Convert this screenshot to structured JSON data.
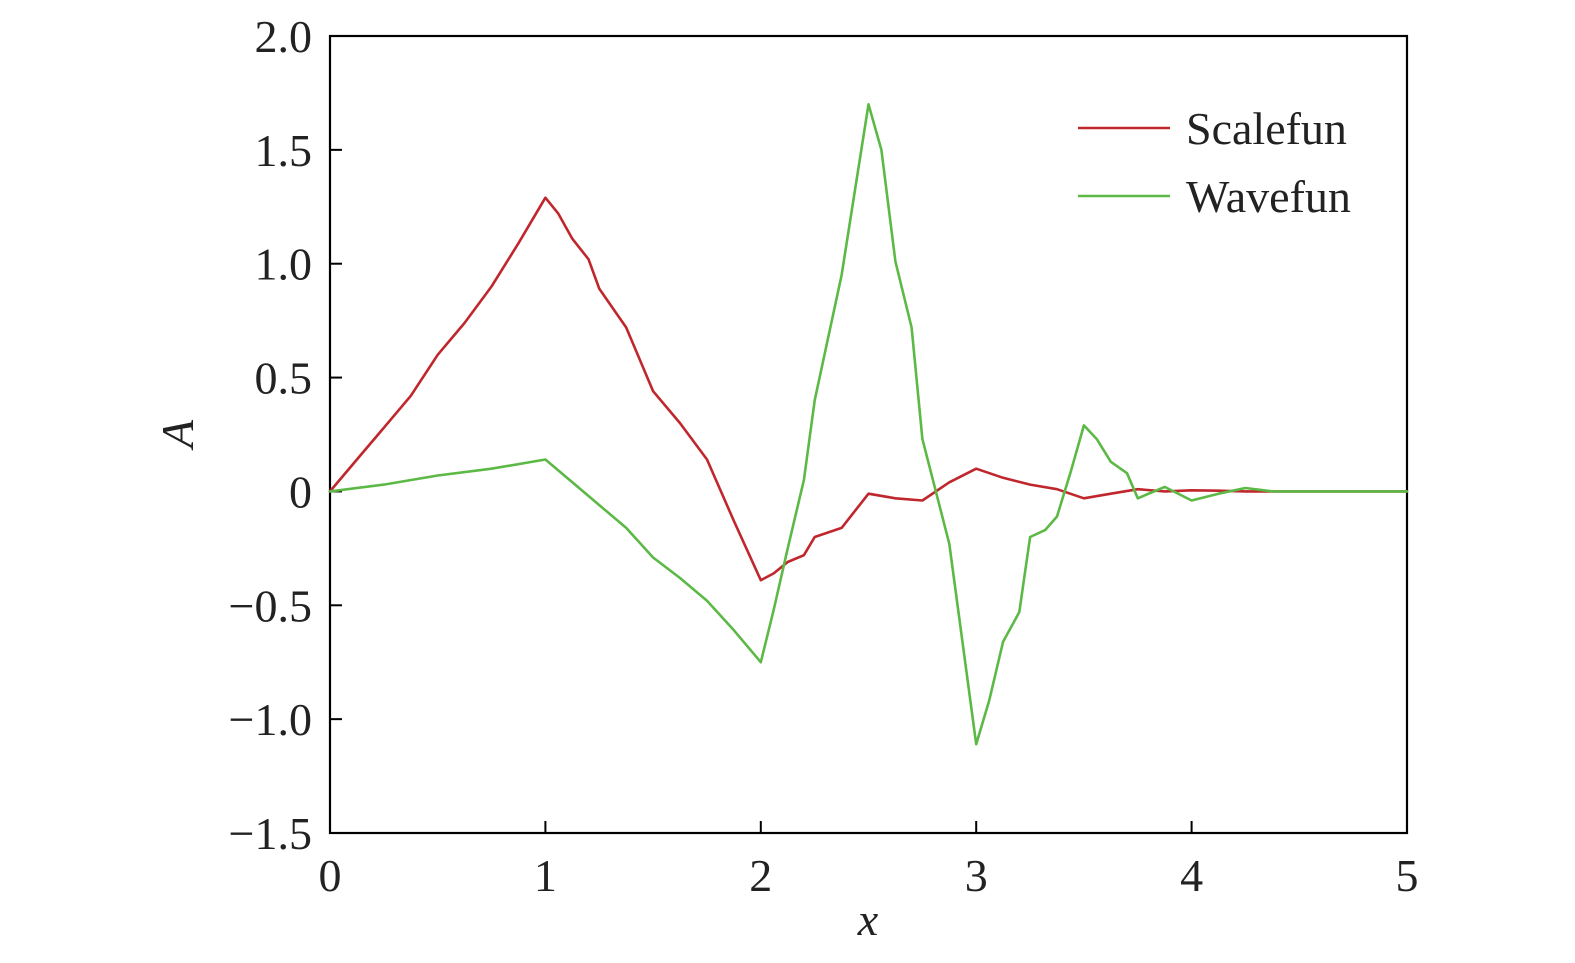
{
  "chart_data": {
    "type": "line",
    "xlabel": "x",
    "ylabel": "A",
    "xlim": [
      0,
      5
    ],
    "ylim": [
      -1.5,
      2.0
    ],
    "xticks": [
      0,
      1,
      2,
      3,
      4,
      5
    ],
    "xtick_labels": [
      "0",
      "1",
      "2",
      "3",
      "4",
      "5"
    ],
    "yticks": [
      -1.5,
      -1.0,
      -0.5,
      0,
      0.5,
      1.0,
      1.5,
      2.0
    ],
    "ytick_labels": [
      "−1.5",
      "−1.0",
      "−0.5",
      "0",
      "0.5",
      "1.0",
      "1.5",
      "2.0"
    ],
    "grid": false,
    "legend_position": "top-right",
    "series": [
      {
        "name": "Scalefun",
        "color": "#c0272d",
        "points": [
          [
            0,
            0
          ],
          [
            0.125,
            0.14
          ],
          [
            0.25,
            0.28
          ],
          [
            0.375,
            0.42
          ],
          [
            0.5,
            0.6
          ],
          [
            0.625,
            0.74
          ],
          [
            0.75,
            0.9
          ],
          [
            0.875,
            1.09
          ],
          [
            1.0,
            1.29
          ],
          [
            1.06,
            1.22
          ],
          [
            1.125,
            1.11
          ],
          [
            1.2,
            1.02
          ],
          [
            1.25,
            0.89
          ],
          [
            1.375,
            0.72
          ],
          [
            1.5,
            0.44
          ],
          [
            1.625,
            0.3
          ],
          [
            1.75,
            0.14
          ],
          [
            1.875,
            -0.13
          ],
          [
            2.0,
            -0.39
          ],
          [
            2.06,
            -0.36
          ],
          [
            2.125,
            -0.31
          ],
          [
            2.2,
            -0.28
          ],
          [
            2.25,
            -0.2
          ],
          [
            2.375,
            -0.16
          ],
          [
            2.5,
            -0.01
          ],
          [
            2.625,
            -0.03
          ],
          [
            2.75,
            -0.04
          ],
          [
            2.875,
            0.04
          ],
          [
            3.0,
            0.1
          ],
          [
            3.125,
            0.06
          ],
          [
            3.25,
            0.03
          ],
          [
            3.375,
            0.01
          ],
          [
            3.5,
            -0.03
          ],
          [
            3.625,
            -0.01
          ],
          [
            3.75,
            0.01
          ],
          [
            3.875,
            0.0
          ],
          [
            4.0,
            0.005
          ],
          [
            4.125,
            0.003
          ],
          [
            4.25,
            0.0
          ],
          [
            4.5,
            0.0
          ],
          [
            5.0,
            0.0
          ]
        ]
      },
      {
        "name": "Wavefun",
        "color": "#5cb946",
        "points": [
          [
            0,
            0
          ],
          [
            0.25,
            0.03
          ],
          [
            0.5,
            0.07
          ],
          [
            0.75,
            0.1
          ],
          [
            1.0,
            0.14
          ],
          [
            1.125,
            0.04
          ],
          [
            1.25,
            -0.06
          ],
          [
            1.375,
            -0.16
          ],
          [
            1.5,
            -0.29
          ],
          [
            1.625,
            -0.38
          ],
          [
            1.75,
            -0.48
          ],
          [
            1.875,
            -0.61
          ],
          [
            2.0,
            -0.75
          ],
          [
            2.06,
            -0.52
          ],
          [
            2.125,
            -0.25
          ],
          [
            2.2,
            0.05
          ],
          [
            2.25,
            0.4
          ],
          [
            2.375,
            0.95
          ],
          [
            2.5,
            1.7
          ],
          [
            2.56,
            1.5
          ],
          [
            2.625,
            1.01
          ],
          [
            2.7,
            0.72
          ],
          [
            2.75,
            0.23
          ],
          [
            2.875,
            -0.23
          ],
          [
            3.0,
            -1.11
          ],
          [
            3.06,
            -0.92
          ],
          [
            3.125,
            -0.66
          ],
          [
            3.2,
            -0.53
          ],
          [
            3.25,
            -0.2
          ],
          [
            3.32,
            -0.17
          ],
          [
            3.375,
            -0.11
          ],
          [
            3.44,
            0.09
          ],
          [
            3.5,
            0.29
          ],
          [
            3.56,
            0.23
          ],
          [
            3.625,
            0.13
          ],
          [
            3.7,
            0.08
          ],
          [
            3.75,
            -0.03
          ],
          [
            3.875,
            0.02
          ],
          [
            4.0,
            -0.04
          ],
          [
            4.125,
            -0.01
          ],
          [
            4.25,
            0.015
          ],
          [
            4.375,
            0.0
          ],
          [
            4.5,
            0.0
          ],
          [
            5.0,
            0.0
          ]
        ]
      }
    ]
  }
}
